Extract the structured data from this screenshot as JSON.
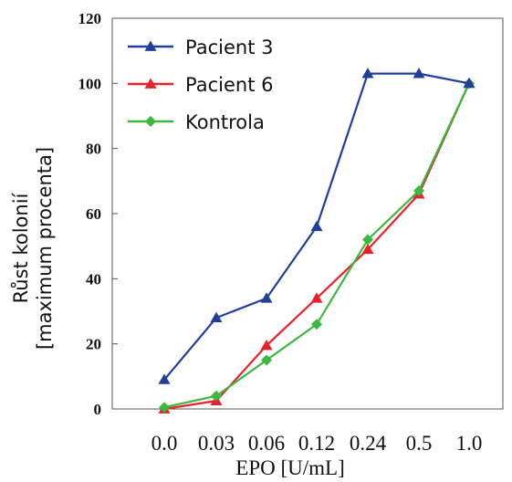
{
  "chart_data": {
    "type": "line",
    "xlabel": "EPO [U/mL]",
    "ylabel": [
      "Růst kolonií",
      "[maximum procenta]"
    ],
    "categories": [
      "0.0",
      "0.03",
      "0.06",
      "0.12",
      "0.24",
      "0.5",
      "1.0"
    ],
    "ylim": [
      0,
      120
    ],
    "yticks": [
      "0",
      "20",
      "40",
      "60",
      "80",
      "100",
      "120"
    ],
    "grid": false,
    "legend_position": "top-left",
    "series": [
      {
        "name": "Pacient 3",
        "color": "#1f3f9a",
        "marker": "triangle",
        "values": [
          9,
          28,
          34,
          56,
          103,
          103,
          100
        ]
      },
      {
        "name": "Pacient 6",
        "color": "#e8212a",
        "marker": "triangle",
        "values": [
          0,
          2.5,
          19.5,
          34,
          49,
          66,
          100
        ]
      },
      {
        "name": "Kontrola",
        "color": "#3cb83c",
        "marker": "diamond",
        "values": [
          0.5,
          4,
          15,
          26,
          52,
          67,
          100
        ]
      }
    ]
  }
}
